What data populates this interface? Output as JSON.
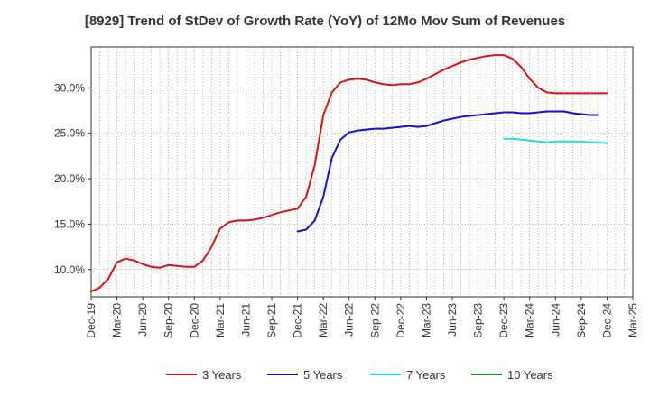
{
  "chart_data": {
    "type": "line",
    "title": "[8929]  Trend of StDev of Growth Rate (YoY) of 12Mo Mov Sum of Revenues",
    "xlabel": "",
    "ylabel": "",
    "ylim": [
      7.0,
      34.5
    ],
    "y_ticks": [
      10,
      15,
      20,
      25,
      30
    ],
    "y_tick_labels": [
      "10.0%",
      "15.0%",
      "20.0%",
      "25.0%",
      "30.0%"
    ],
    "x_start": "2019-12",
    "x_end": "2025-03",
    "x_tick_labels": [
      "Dec-19",
      "Mar-20",
      "Jun-20",
      "Sep-20",
      "Dec-20",
      "Mar-21",
      "Jun-21",
      "Sep-21",
      "Dec-21",
      "Mar-22",
      "Jun-22",
      "Sep-22",
      "Dec-22",
      "Mar-23",
      "Jun-23",
      "Sep-23",
      "Dec-23",
      "Mar-24",
      "Jun-24",
      "Sep-24",
      "Dec-24",
      "Mar-25"
    ],
    "grid": true,
    "legend_position": "bottom",
    "series": [
      {
        "name": "3 Years",
        "color": "#dd1111",
        "start_index": 0,
        "values": [
          7.6,
          8.0,
          9.0,
          10.8,
          11.2,
          11.0,
          10.6,
          10.3,
          10.2,
          10.5,
          10.4,
          10.3,
          10.3,
          11.0,
          12.5,
          14.5,
          15.2,
          15.4,
          15.4,
          15.5,
          15.7,
          16.0,
          16.3,
          16.5,
          16.7,
          18.0,
          21.5,
          27.0,
          29.5,
          30.6,
          30.9,
          31.0,
          30.9,
          30.6,
          30.4,
          30.3,
          30.4,
          30.4,
          30.6,
          31.0,
          31.5,
          32.0,
          32.4,
          32.8,
          33.1,
          33.3,
          33.5,
          33.6,
          33.6,
          33.2,
          32.3,
          31.0,
          30.0,
          29.5,
          29.4,
          29.4,
          29.4,
          29.4,
          29.4,
          29.4,
          29.4
        ]
      },
      {
        "name": "5 Years",
        "color": "#1111cc",
        "start_index": 24,
        "values": [
          14.2,
          14.4,
          15.4,
          18.0,
          22.3,
          24.3,
          25.1,
          25.3,
          25.4,
          25.5,
          25.5,
          25.6,
          25.7,
          25.8,
          25.7,
          25.8,
          26.1,
          26.4,
          26.6,
          26.8,
          26.9,
          27.0,
          27.1,
          27.2,
          27.3,
          27.3,
          27.2,
          27.2,
          27.3,
          27.4,
          27.4,
          27.4,
          27.2,
          27.1,
          27.0,
          27.0
        ]
      },
      {
        "name": "7 Years",
        "color": "#22dddd",
        "start_index": 48,
        "values": [
          24.4,
          24.4,
          24.3,
          24.2,
          24.1,
          24.0,
          24.1,
          24.1,
          24.1,
          24.1,
          24.0,
          24.0,
          23.9
        ]
      },
      {
        "name": "10 Years",
        "color": "#228822",
        "start_index": 0,
        "values": []
      }
    ]
  }
}
